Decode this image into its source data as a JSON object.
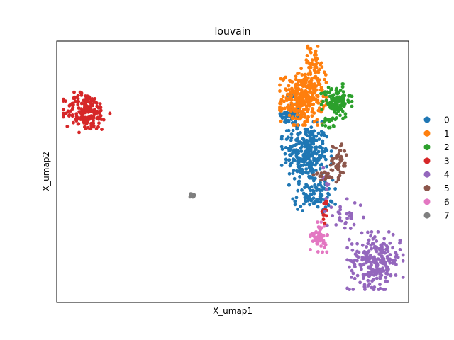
{
  "chart_data": {
    "type": "scatter",
    "title": "louvain",
    "xlabel": "X_umap1",
    "ylabel": "X_umap2",
    "x_ticks": false,
    "y_ticks": false,
    "grid": false,
    "legend": "right",
    "xlim": [
      0,
      100
    ],
    "ylim": [
      0,
      100
    ],
    "series": [
      {
        "name": "0",
        "color": "#1f77b4",
        "clusters": [
          {
            "cx": 71,
            "cy": 57,
            "sx": 3.2,
            "sy": 5.5,
            "n": 260
          },
          {
            "cx": 67,
            "cy": 72,
            "sx": 1.6,
            "sy": 4.0,
            "n": 70
          },
          {
            "cx": 73,
            "cy": 41,
            "sx": 2.8,
            "sy": 3.0,
            "n": 90
          }
        ]
      },
      {
        "name": "1",
        "color": "#ff7f0e",
        "clusters": [
          {
            "cx": 70,
            "cy": 78,
            "sx": 3.0,
            "sy": 4.6,
            "n": 300
          },
          {
            "cx": 73,
            "cy": 91,
            "sx": 1.6,
            "sy": 3.2,
            "n": 60
          }
        ]
      },
      {
        "name": "2",
        "color": "#2ca02c",
        "clusters": [
          {
            "cx": 79.5,
            "cy": 77,
            "sx": 2.0,
            "sy": 3.0,
            "n": 110
          },
          {
            "cx": 77.5,
            "cy": 70,
            "sx": 0.9,
            "sy": 2.2,
            "n": 18
          }
        ]
      },
      {
        "name": "3",
        "color": "#d62728",
        "clusters": [
          {
            "cx": 8.5,
            "cy": 73,
            "sx": 3.0,
            "sy": 3.6,
            "n": 190
          },
          {
            "cx": 76.5,
            "cy": 35,
            "sx": 0.5,
            "sy": 2.2,
            "n": 14
          }
        ]
      },
      {
        "name": "4",
        "color": "#9467bd",
        "clusters": [
          {
            "cx": 90.5,
            "cy": 16,
            "sx": 3.6,
            "sy": 5.0,
            "n": 240
          },
          {
            "cx": 82,
            "cy": 33,
            "sx": 2.6,
            "sy": 3.0,
            "n": 30
          },
          {
            "cx": 76.5,
            "cy": 46,
            "sx": 0.6,
            "sy": 3.0,
            "n": 12
          }
        ]
      },
      {
        "name": "5",
        "color": "#8c564b",
        "clusters": [
          {
            "cx": 80,
            "cy": 54,
            "sx": 1.3,
            "sy": 3.6,
            "n": 50
          },
          {
            "cx": 76,
            "cy": 49,
            "sx": 1.5,
            "sy": 1.2,
            "n": 16
          }
        ]
      },
      {
        "name": "6",
        "color": "#e377c2",
        "clusters": [
          {
            "cx": 74.5,
            "cy": 25,
            "sx": 1.1,
            "sy": 2.6,
            "n": 55
          }
        ]
      },
      {
        "name": "7",
        "color": "#7f7f7f",
        "clusters": [
          {
            "cx": 38.5,
            "cy": 41,
            "sx": 0.3,
            "sy": 0.4,
            "n": 22
          }
        ]
      }
    ]
  }
}
